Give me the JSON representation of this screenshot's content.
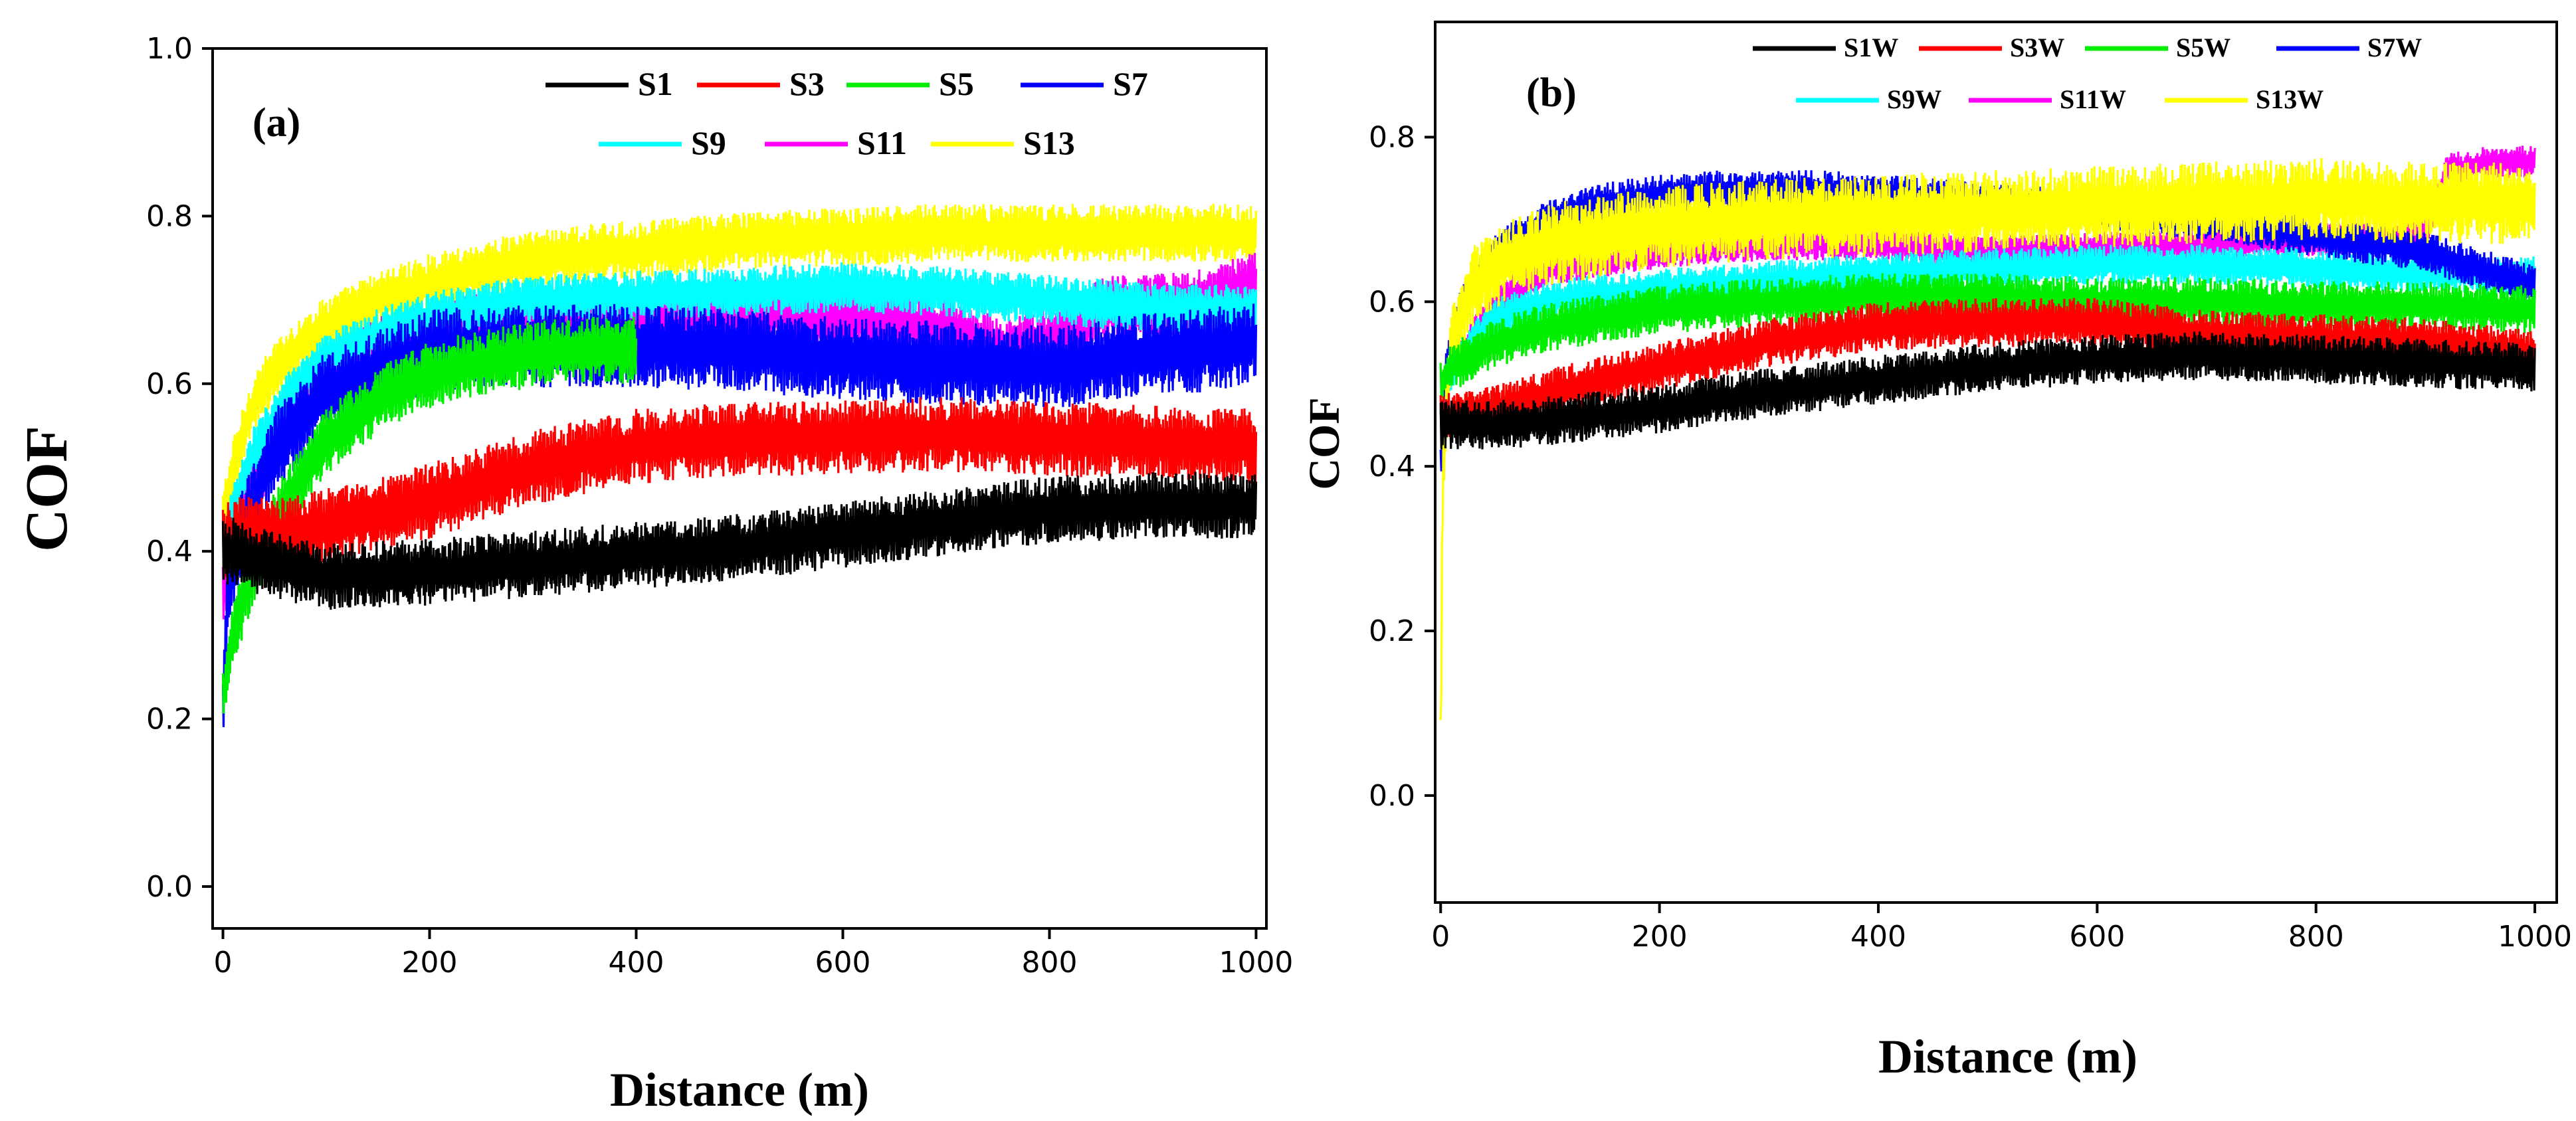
{
  "chart_data": [
    {
      "type": "line",
      "panel_label": "(a)",
      "xlabel": "Distance (m)",
      "ylabel": "COF",
      "xlim": [
        -10,
        1010
      ],
      "ylim": [
        -0.05,
        1.0
      ],
      "xticks": [
        0,
        200,
        400,
        600,
        800,
        1000
      ],
      "xtick_labels": [
        "0",
        "200",
        "400",
        "600",
        "800",
        "1000"
      ],
      "yticks": [
        0.0,
        0.2,
        0.4,
        0.6,
        0.8,
        1.0
      ],
      "ytick_labels": [
        "0.0",
        "0.2",
        "0.4",
        "0.6",
        "0.8",
        "1.0"
      ],
      "legend_position": "top-right",
      "draw_order": [
        "S13",
        "S11",
        "S9",
        "S7",
        "S5",
        "S3",
        "S1"
      ],
      "series": [
        {
          "name": "S1",
          "color": "#000000",
          "x": [
            0,
            10,
            30,
            60,
            100,
            200,
            300,
            400,
            500,
            600,
            700,
            800,
            900,
            1000
          ],
          "y": [
            0.4,
            0.4,
            0.39,
            0.38,
            0.37,
            0.375,
            0.385,
            0.395,
            0.405,
            0.42,
            0.435,
            0.45,
            0.455,
            0.455
          ],
          "noise": 0.04
        },
        {
          "name": "S3",
          "color": "#ff0000",
          "x": [
            0,
            10,
            30,
            60,
            100,
            200,
            300,
            400,
            500,
            600,
            700,
            800,
            900,
            1000
          ],
          "y": [
            0.41,
            0.42,
            0.42,
            0.42,
            0.43,
            0.46,
            0.5,
            0.525,
            0.535,
            0.535,
            0.54,
            0.535,
            0.53,
            0.525
          ],
          "noise": 0.045
        },
        {
          "name": "S5",
          "color": "#00ee00",
          "x": [
            0,
            10,
            30,
            60,
            100,
            150,
            200,
            250,
            300,
            350,
            400
          ],
          "y": [
            0.22,
            0.3,
            0.38,
            0.46,
            0.53,
            0.58,
            0.61,
            0.625,
            0.635,
            0.64,
            0.64
          ],
          "noise": 0.04
        },
        {
          "name": "S7",
          "color": "#0000ff",
          "x": [
            0,
            5,
            20,
            50,
            100,
            200,
            300,
            400,
            500,
            600,
            700,
            780,
            820,
            860,
            900,
            950,
            1000
          ],
          "y": [
            0.2,
            0.36,
            0.43,
            0.52,
            0.59,
            0.64,
            0.645,
            0.645,
            0.64,
            0.63,
            0.625,
            0.62,
            0.62,
            0.63,
            0.635,
            0.64,
            0.65
          ],
          "noise": 0.05
        },
        {
          "name": "S9",
          "color": "#00ffff",
          "x": [
            0,
            10,
            30,
            60,
            100,
            150,
            200,
            300,
            400,
            500,
            600,
            700,
            800,
            900,
            1000
          ],
          "y": [
            0.4,
            0.45,
            0.52,
            0.58,
            0.63,
            0.66,
            0.68,
            0.7,
            0.705,
            0.71,
            0.715,
            0.71,
            0.7,
            0.69,
            0.69
          ],
          "noise": 0.03
        },
        {
          "name": "S11",
          "color": "#ff00ff",
          "x": [
            0,
            10,
            30,
            60,
            100,
            150,
            200,
            300,
            400,
            500,
            600,
            700,
            750,
            800,
            850,
            900,
            950,
            1000
          ],
          "y": [
            0.35,
            0.4,
            0.48,
            0.55,
            0.6,
            0.64,
            0.66,
            0.675,
            0.68,
            0.685,
            0.685,
            0.665,
            0.64,
            0.65,
            0.69,
            0.69,
            0.7,
            0.72
          ],
          "noise": 0.04
        },
        {
          "name": "S13",
          "color": "#ffff00",
          "x": [
            0,
            10,
            30,
            60,
            100,
            150,
            200,
            300,
            400,
            500,
            600,
            700,
            800,
            900,
            1000
          ],
          "y": [
            0.44,
            0.5,
            0.58,
            0.63,
            0.67,
            0.7,
            0.72,
            0.75,
            0.76,
            0.77,
            0.775,
            0.78,
            0.78,
            0.78,
            0.78
          ],
          "noise": 0.035
        }
      ]
    },
    {
      "type": "line",
      "panel_label": "(b)",
      "xlabel": "Distance (m)",
      "ylabel": "COF",
      "xlim": [
        -5,
        1020
      ],
      "ylim": [
        -0.13,
        0.94
      ],
      "xticks": [
        0,
        200,
        400,
        600,
        800,
        1000
      ],
      "xtick_labels": [
        "0",
        "200",
        "400",
        "600",
        "800",
        "1000"
      ],
      "yticks": [
        0.0,
        0.2,
        0.4,
        0.6,
        0.8
      ],
      "ytick_labels": [
        "0.0",
        "0.2",
        "0.4",
        "0.6",
        "0.8"
      ],
      "legend_position": "top-right",
      "draw_order": [
        "S11W",
        "S9W",
        "S7W",
        "S13W",
        "S5W",
        "S3W",
        "S1W"
      ],
      "series": [
        {
          "name": "S1W",
          "color": "#000000",
          "x": [
            0,
            10,
            50,
            100,
            200,
            300,
            400,
            500,
            600,
            700,
            800,
            900,
            1000
          ],
          "y": [
            0.45,
            0.45,
            0.45,
            0.455,
            0.47,
            0.49,
            0.505,
            0.52,
            0.53,
            0.535,
            0.53,
            0.525,
            0.52
          ],
          "noise": 0.03
        },
        {
          "name": "S3W",
          "color": "#ff0000",
          "x": [
            0,
            10,
            50,
            100,
            200,
            300,
            400,
            500,
            600,
            700,
            800,
            900,
            1000
          ],
          "y": [
            0.46,
            0.46,
            0.47,
            0.49,
            0.52,
            0.55,
            0.57,
            0.575,
            0.575,
            0.56,
            0.555,
            0.55,
            0.535
          ],
          "noise": 0.03
        },
        {
          "name": "S5W",
          "color": "#00ee00",
          "x": [
            0,
            10,
            50,
            100,
            150,
            200,
            300,
            400,
            500,
            600,
            700,
            800,
            900,
            1000
          ],
          "y": [
            0.5,
            0.52,
            0.55,
            0.57,
            0.58,
            0.59,
            0.6,
            0.605,
            0.605,
            0.6,
            0.6,
            0.595,
            0.595,
            0.59
          ],
          "noise": 0.03
        },
        {
          "name": "S7W",
          "color": "#0000ff",
          "x": [
            0,
            5,
            20,
            50,
            100,
            150,
            200,
            250,
            300,
            350,
            400,
            500,
            700,
            900,
            1000
          ],
          "y": [
            0.4,
            0.52,
            0.6,
            0.66,
            0.7,
            0.72,
            0.73,
            0.735,
            0.735,
            0.735,
            0.73,
            0.72,
            0.7,
            0.66,
            0.62
          ],
          "noise": 0.025
        },
        {
          "name": "S9W",
          "color": "#00ffff",
          "x": [
            0,
            10,
            50,
            100,
            150,
            200,
            300,
            400,
            500,
            600,
            700,
            800,
            900,
            1000
          ],
          "y": [
            0.45,
            0.52,
            0.58,
            0.6,
            0.61,
            0.615,
            0.625,
            0.635,
            0.64,
            0.645,
            0.645,
            0.64,
            0.635,
            0.63
          ],
          "noise": 0.025
        },
        {
          "name": "S11W",
          "color": "#ff00ff",
          "x": [
            0,
            10,
            50,
            100,
            200,
            300,
            400,
            500,
            600,
            700,
            800,
            900,
            920,
            960,
            1000
          ],
          "y": [
            0.45,
            0.52,
            0.6,
            0.64,
            0.66,
            0.67,
            0.67,
            0.66,
            0.665,
            0.67,
            0.675,
            0.68,
            0.76,
            0.77,
            0.77
          ],
          "noise": 0.02
        },
        {
          "name": "S13W",
          "color": "#ffff00",
          "x": [
            0,
            2,
            10,
            30,
            60,
            100,
            200,
            300,
            400,
            500,
            600,
            700,
            800,
            900,
            1000
          ],
          "y": [
            0.05,
            0.4,
            0.55,
            0.62,
            0.65,
            0.67,
            0.69,
            0.7,
            0.705,
            0.71,
            0.715,
            0.72,
            0.725,
            0.72,
            0.72
          ],
          "noise": 0.05
        }
      ]
    }
  ]
}
